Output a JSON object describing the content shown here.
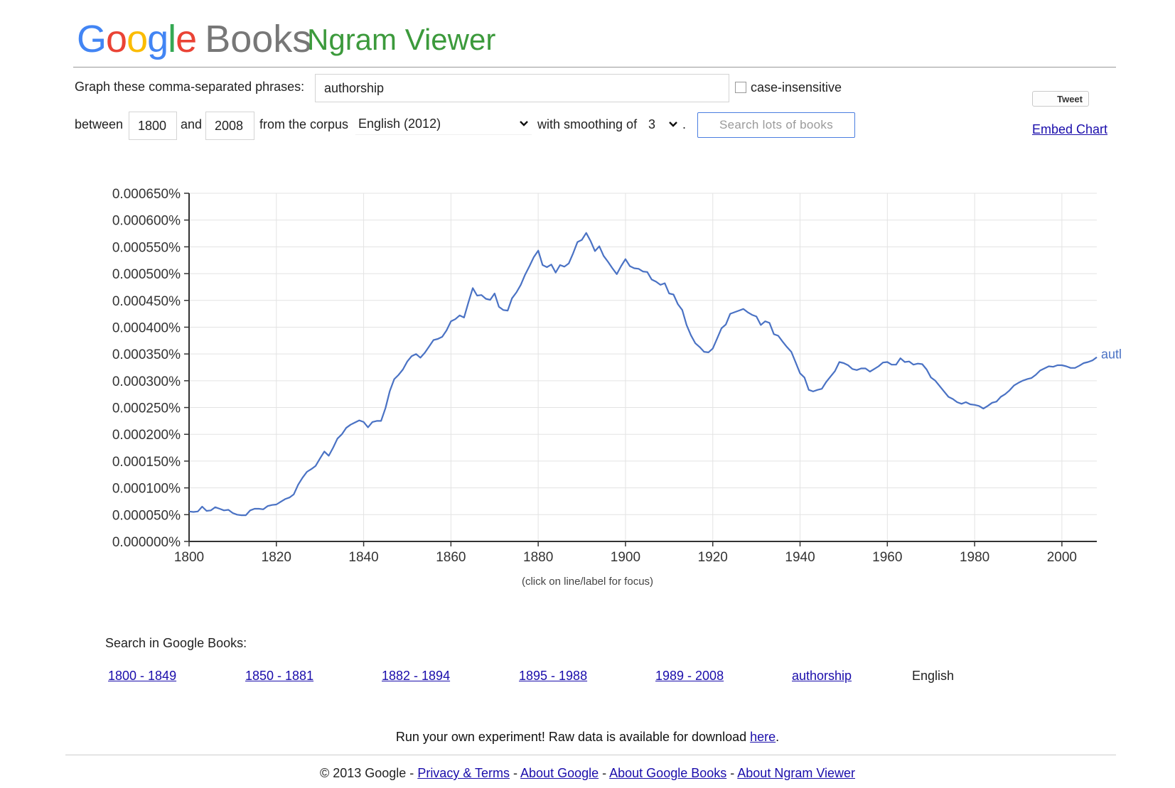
{
  "logo": {
    "g1": "G",
    "g2": "o",
    "g3": "o",
    "g4": "g",
    "g5": "l",
    "g6": "e",
    "books": "Books"
  },
  "app_title": "Ngram Viewer",
  "form": {
    "phrases_label": "Graph these comma-separated phrases:",
    "phrases_value": "authorship",
    "case_label": "case-insensitive",
    "between_label": "between",
    "year_start": "1800",
    "and_label": "and",
    "year_end": "2008",
    "corpus_label": "from the corpus",
    "corpus_value": "English (2012)",
    "smoothing_label": "with smoothing of",
    "smoothing_value": "3",
    "period": ".",
    "search_button": "Search lots of books"
  },
  "tweet_label": "Tweet",
  "embed_label": "Embed Chart",
  "chart_caption": "(click on line/label for focus)",
  "chart_data": {
    "type": "line",
    "x_ticks": [
      1800,
      1820,
      1840,
      1860,
      1880,
      1900,
      1920,
      1940,
      1960,
      1980,
      2000
    ],
    "y_ticks": [
      0,
      5e-05,
      0.0001,
      0.00015,
      0.0002,
      0.00025,
      0.0003,
      0.00035,
      0.0004,
      0.00045,
      0.0005,
      0.00055,
      0.0006,
      0.00065
    ],
    "y_tick_labels": [
      "0.000000%",
      "0.000050%",
      "0.000100%",
      "0.000150%",
      "0.000200%",
      "0.000250%",
      "0.000300%",
      "0.000350%",
      "0.000400%",
      "0.000450%",
      "0.000500%",
      "0.000550%",
      "0.000600%",
      "0.000650%"
    ],
    "xlim": [
      1800,
      2008
    ],
    "ylim": [
      0,
      0.00065
    ],
    "grid": true,
    "series_color": "#4a72c4",
    "series": [
      {
        "name": "authorship",
        "label_shown": "autl",
        "x": [
          1800,
          1801,
          1802,
          1803,
          1804,
          1805,
          1806,
          1807,
          1808,
          1809,
          1810,
          1811,
          1812,
          1813,
          1814,
          1815,
          1816,
          1817,
          1818,
          1819,
          1820,
          1821,
          1822,
          1823,
          1824,
          1825,
          1826,
          1827,
          1828,
          1829,
          1830,
          1831,
          1832,
          1833,
          1834,
          1835,
          1836,
          1837,
          1838,
          1839,
          1840,
          1841,
          1842,
          1843,
          1844,
          1845,
          1846,
          1847,
          1848,
          1849,
          1850,
          1851,
          1852,
          1853,
          1854,
          1855,
          1856,
          1857,
          1858,
          1859,
          1860,
          1861,
          1862,
          1863,
          1864,
          1865,
          1866,
          1867,
          1868,
          1869,
          1870,
          1871,
          1872,
          1873,
          1874,
          1875,
          1876,
          1877,
          1878,
          1879,
          1880,
          1881,
          1882,
          1883,
          1884,
          1885,
          1886,
          1887,
          1888,
          1889,
          1890,
          1891,
          1892,
          1893,
          1894,
          1895,
          1896,
          1897,
          1898,
          1899,
          1900,
          1901,
          1902,
          1903,
          1904,
          1905,
          1906,
          1907,
          1908,
          1909,
          1910,
          1911,
          1912,
          1913,
          1914,
          1915,
          1916,
          1917,
          1918,
          1919,
          1920,
          1921,
          1922,
          1923,
          1924,
          1925,
          1926,
          1927,
          1928,
          1929,
          1930,
          1931,
          1932,
          1933,
          1934,
          1935,
          1936,
          1937,
          1938,
          1939,
          1940,
          1941,
          1942,
          1943,
          1944,
          1945,
          1946,
          1947,
          1948,
          1949,
          1950,
          1951,
          1952,
          1953,
          1954,
          1955,
          1956,
          1957,
          1958,
          1959,
          1960,
          1961,
          1962,
          1963,
          1964,
          1965,
          1966,
          1967,
          1968,
          1969,
          1970,
          1971,
          1972,
          1973,
          1974,
          1975,
          1976,
          1977,
          1978,
          1979,
          1980,
          1981,
          1982,
          1983,
          1984,
          1985,
          1986,
          1987,
          1988,
          1989,
          1990,
          1991,
          1992,
          1993,
          1994,
          1995,
          1996,
          1997,
          1998,
          1999,
          2000,
          2001,
          2002,
          2003,
          2004,
          2005,
          2006,
          2007,
          2008
        ],
        "y": [
          5.6e-05,
          5.5e-05,
          5.6e-05,
          6.5e-05,
          5.7e-05,
          5.8e-05,
          6.4e-05,
          6.1e-05,
          5.8e-05,
          5.9e-05,
          5.3e-05,
          5e-05,
          4.9e-05,
          4.9e-05,
          5.8e-05,
          6.1e-05,
          6.1e-05,
          6e-05,
          6.6e-05,
          6.8e-05,
          6.9e-05,
          7.4e-05,
          7.9e-05,
          8.2e-05,
          8.8e-05,
          0.000106,
          0.000119,
          0.00013,
          0.000135,
          0.000141,
          0.000155,
          0.000168,
          0.00016,
          0.000175,
          0.000192,
          0.0002,
          0.000212,
          0.000218,
          0.000222,
          0.000226,
          0.000223,
          0.000213,
          0.000223,
          0.000225,
          0.000225,
          0.000249,
          0.000281,
          0.000303,
          0.000311,
          0.000321,
          0.000336,
          0.000346,
          0.00035,
          0.000343,
          0.000352,
          0.000364,
          0.000376,
          0.000378,
          0.000382,
          0.000394,
          0.000411,
          0.000415,
          0.000422,
          0.000418,
          0.000446,
          0.000473,
          0.000459,
          0.00046,
          0.000453,
          0.000451,
          0.000463,
          0.000438,
          0.000432,
          0.000431,
          0.000454,
          0.000465,
          0.000479,
          0.000498,
          0.000514,
          0.000531,
          0.000543,
          0.000516,
          0.000512,
          0.000517,
          0.000502,
          0.000516,
          0.000513,
          0.000519,
          0.000538,
          0.000559,
          0.000563,
          0.000576,
          0.000561,
          0.000542,
          0.000551,
          0.000533,
          0.000522,
          0.00051,
          0.000499,
          0.000514,
          0.000527,
          0.000514,
          0.00051,
          0.000509,
          0.000504,
          0.000503,
          0.000489,
          0.000485,
          0.000479,
          0.000482,
          0.000463,
          0.000461,
          0.000443,
          0.000432,
          0.000404,
          0.000385,
          0.00037,
          0.000363,
          0.000354,
          0.000353,
          0.00036,
          0.000379,
          0.000398,
          0.000405,
          0.000425,
          0.000428,
          0.000431,
          0.000434,
          0.000428,
          0.000423,
          0.00042,
          0.000404,
          0.000411,
          0.000408,
          0.000387,
          0.000384,
          0.000373,
          0.000363,
          0.000354,
          0.000334,
          0.000314,
          0.000306,
          0.000283,
          0.00028,
          0.000283,
          0.000285,
          0.000298,
          0.000308,
          0.000318,
          0.000335,
          0.000333,
          0.000329,
          0.000322,
          0.00032,
          0.000323,
          0.000323,
          0.000317,
          0.000322,
          0.000327,
          0.000334,
          0.000335,
          0.00033,
          0.00033,
          0.000342,
          0.000335,
          0.000336,
          0.00033,
          0.000332,
          0.000331,
          0.000321,
          0.000306,
          0.0003,
          0.00029,
          0.00028,
          0.00027,
          0.000266,
          0.00026,
          0.000257,
          0.00026,
          0.000256,
          0.000255,
          0.000253,
          0.000248,
          0.000253,
          0.000259,
          0.000261,
          0.00027,
          0.000275,
          0.000282,
          0.000291,
          0.000296,
          0.0003,
          0.000303,
          0.000305,
          0.000311,
          0.000319,
          0.000323,
          0.000327,
          0.000326,
          0.000329,
          0.000329,
          0.000327,
          0.000324,
          0.000324,
          0.000328,
          0.000333,
          0.000335,
          0.000338,
          0.000344
        ]
      }
    ]
  },
  "search_in": {
    "label": "Search in Google Books:",
    "ranges": [
      "1800 - 1849",
      "1850 - 1881",
      "1882 - 1894",
      "1895 - 1988",
      "1989 - 2008"
    ],
    "term_link": "authorship",
    "language": "English"
  },
  "raw_data": {
    "text": "Run your own experiment! Raw data is available for download ",
    "link": "here",
    "end": "."
  },
  "footer": {
    "copyright": "© 2013 Google - ",
    "links": [
      "Privacy & Terms",
      "About Google",
      "About Google Books",
      "About Ngram Viewer"
    ],
    "separator": " - "
  }
}
